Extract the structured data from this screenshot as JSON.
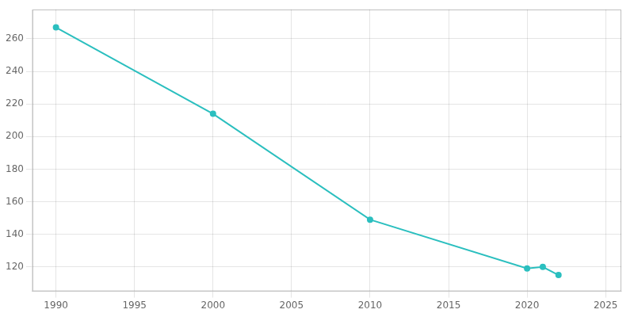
{
  "chart_data": {
    "type": "line",
    "x": [
      1990,
      2000,
      2010,
      2020,
      2021,
      2022
    ],
    "values": [
      267,
      214,
      149,
      119,
      120,
      115
    ],
    "color": "#2BBFBF",
    "marker": "circle",
    "xlim": [
      1988.5,
      2026
    ],
    "ylim": [
      105,
      278
    ],
    "xticks": [
      1990,
      1995,
      2000,
      2005,
      2010,
      2015,
      2020,
      2025
    ],
    "yticks": [
      120,
      140,
      160,
      180,
      200,
      220,
      240,
      260
    ],
    "grid": true
  }
}
